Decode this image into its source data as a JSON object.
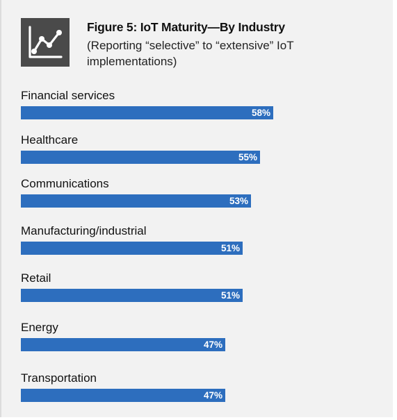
{
  "figure": {
    "title": "Figure 5: IoT Maturity—By Industry",
    "subtitle": "(Reporting “selective” to “extensive” IoT implementations)",
    "icon": "line-chart-icon"
  },
  "colors": {
    "bar": "#2d6ebe",
    "icon_bg": "#4a4a4a",
    "panel_bg": "#f2f2f2"
  },
  "chart_data": {
    "type": "bar",
    "orientation": "horizontal",
    "title": "Figure 5: IoT Maturity—By Industry",
    "subtitle": "(Reporting “selective” to “extensive” IoT implementations)",
    "categories": [
      "Financial services",
      "Healthcare",
      "Communications",
      "Manufacturing/industrial",
      "Retail",
      "Energy",
      "Transportation"
    ],
    "values": [
      58,
      55,
      53,
      51,
      51,
      47,
      47
    ],
    "value_labels": [
      "58%",
      "55%",
      "53%",
      "51%",
      "51%",
      "47%",
      "47%"
    ],
    "unit": "%",
    "xlim": [
      0,
      100
    ],
    "grid": false,
    "legend": "none"
  }
}
